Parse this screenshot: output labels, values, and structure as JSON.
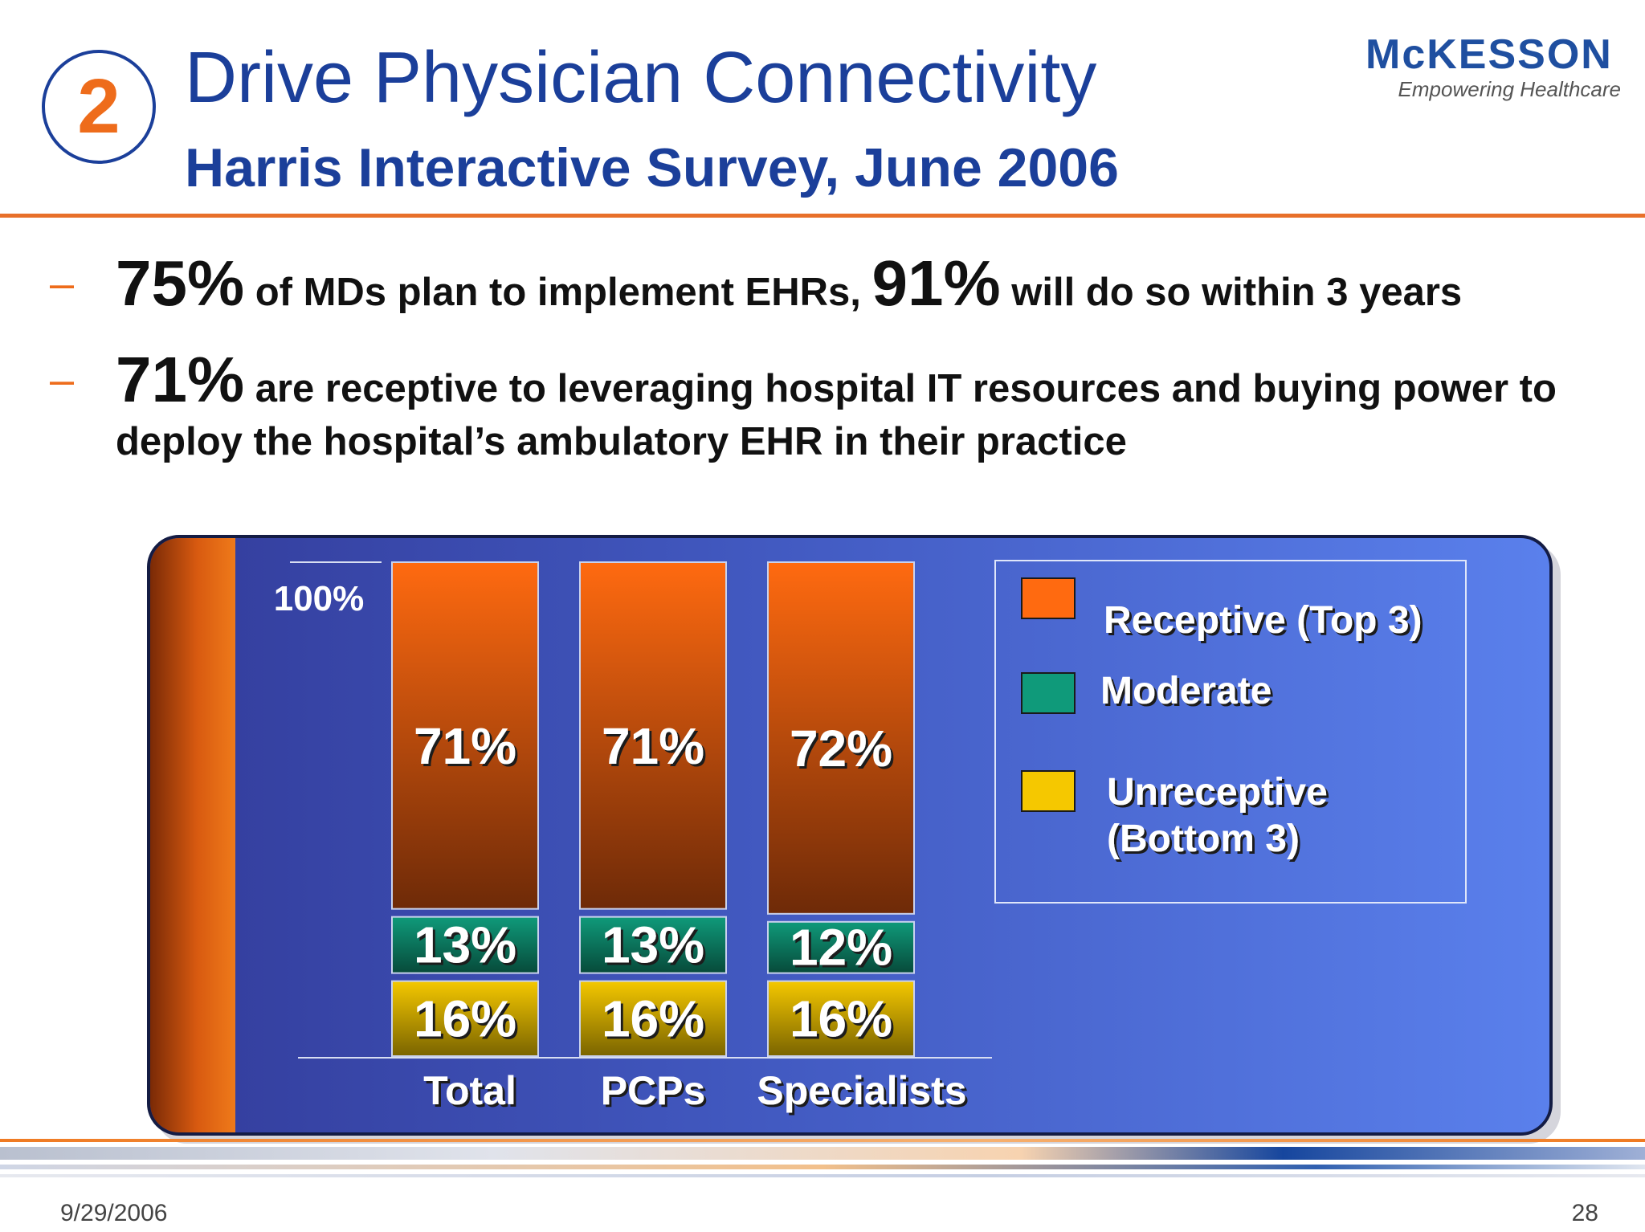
{
  "header": {
    "step_number": "2",
    "title": "Drive Physician Connectivity",
    "subtitle": "Harris Interactive Survey, June 2006",
    "logo_name": "McKESSON",
    "logo_tagline": "Empowering Healthcare"
  },
  "bullets": [
    {
      "dash": "–",
      "stat1": "75%",
      "text1": " of MDs plan to implement EHRs, ",
      "stat2": "91%",
      "text2": " will do so within 3 years"
    },
    {
      "dash": "–",
      "stat1": "71%",
      "text1": " are receptive to leveraging hospital IT resources and buying power to deploy the hospital’s ambulatory EHR in their practice"
    }
  ],
  "chart_data": {
    "type": "bar",
    "stacked": true,
    "categories": [
      "Total",
      "PCPs",
      "Specialists"
    ],
    "series": [
      {
        "name": "Unreceptive (Bottom 3)",
        "values": [
          16,
          16,
          16
        ],
        "labels": [
          "16%",
          "16%",
          "16%"
        ],
        "color": "#f5c800"
      },
      {
        "name": "Moderate",
        "values": [
          13,
          13,
          12
        ],
        "labels": [
          "13%",
          "13%",
          "12%"
        ],
        "color": "#0f9a7a"
      },
      {
        "name": "Receptive (Top 3)",
        "values": [
          71,
          71,
          72
        ],
        "labels": [
          "71%",
          "71%",
          "72%"
        ],
        "color": "#ff6a10"
      }
    ],
    "y_tick_label": "100%",
    "ylim": [
      0,
      100
    ],
    "legend": {
      "position": "right",
      "items": [
        {
          "label": "Receptive (Top 3)",
          "color": "#ff6a10"
        },
        {
          "label": "Moderate",
          "color": "#0f9a7a"
        },
        {
          "label": "Unreceptive",
          "label_line2": "(Bottom 3)",
          "color": "#f5c800"
        }
      ]
    }
  },
  "footer": {
    "date": "9/29/2006",
    "page": "28"
  }
}
